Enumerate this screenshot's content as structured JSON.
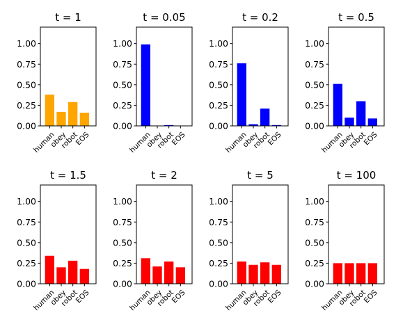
{
  "chart_data": [
    {
      "type": "bar",
      "title": "t = 1",
      "categories": [
        "human",
        "obey",
        "robot",
        "EOS"
      ],
      "values": [
        0.38,
        0.17,
        0.29,
        0.16
      ],
      "color": "#ffa500",
      "ylim": [
        0,
        1.2
      ],
      "yticks": [
        "0.00",
        "0.25",
        "0.50",
        "0.75",
        "1.00"
      ]
    },
    {
      "type": "bar",
      "title": "t = 0.05",
      "categories": [
        "human",
        "obey",
        "robot",
        "EOS"
      ],
      "values": [
        0.99,
        0.002,
        0.01,
        0.001
      ],
      "color": "#0000ff",
      "ylim": [
        0,
        1.2
      ],
      "yticks": [
        "0.00",
        "0.25",
        "0.50",
        "0.75",
        "1.00"
      ]
    },
    {
      "type": "bar",
      "title": "t = 0.2",
      "categories": [
        "human",
        "obey",
        "robot",
        "EOS"
      ],
      "values": [
        0.76,
        0.02,
        0.21,
        0.01
      ],
      "color": "#0000ff",
      "ylim": [
        0,
        1.2
      ],
      "yticks": [
        "0.00",
        "0.25",
        "0.50",
        "0.75",
        "1.00"
      ]
    },
    {
      "type": "bar",
      "title": "t = 0.5",
      "categories": [
        "human",
        "obey",
        "robot",
        "EOS"
      ],
      "values": [
        0.51,
        0.1,
        0.3,
        0.09
      ],
      "color": "#0000ff",
      "ylim": [
        0,
        1.2
      ],
      "yticks": [
        "0.00",
        "0.25",
        "0.50",
        "0.75",
        "1.00"
      ]
    },
    {
      "type": "bar",
      "title": "t = 1.5",
      "categories": [
        "human",
        "obey",
        "robot",
        "EOS"
      ],
      "values": [
        0.34,
        0.2,
        0.28,
        0.18
      ],
      "color": "#ff0000",
      "ylim": [
        0,
        1.2
      ],
      "yticks": [
        "0.00",
        "0.25",
        "0.50",
        "0.75",
        "1.00"
      ]
    },
    {
      "type": "bar",
      "title": "t = 2",
      "categories": [
        "human",
        "obey",
        "robot",
        "EOS"
      ],
      "values": [
        0.31,
        0.21,
        0.27,
        0.2
      ],
      "color": "#ff0000",
      "ylim": [
        0,
        1.2
      ],
      "yticks": [
        "0.00",
        "0.25",
        "0.50",
        "0.75",
        "1.00"
      ]
    },
    {
      "type": "bar",
      "title": "t = 5",
      "categories": [
        "human",
        "obey",
        "robot",
        "EOS"
      ],
      "values": [
        0.27,
        0.23,
        0.26,
        0.23
      ],
      "color": "#ff0000",
      "ylim": [
        0,
        1.2
      ],
      "yticks": [
        "0.00",
        "0.25",
        "0.50",
        "0.75",
        "1.00"
      ]
    },
    {
      "type": "bar",
      "title": "t = 100",
      "categories": [
        "human",
        "obey",
        "robot",
        "EOS"
      ],
      "values": [
        0.25,
        0.25,
        0.25,
        0.25
      ],
      "color": "#ff0000",
      "ylim": [
        0,
        1.2
      ],
      "yticks": [
        "0.00",
        "0.25",
        "0.50",
        "0.75",
        "1.00"
      ]
    }
  ]
}
